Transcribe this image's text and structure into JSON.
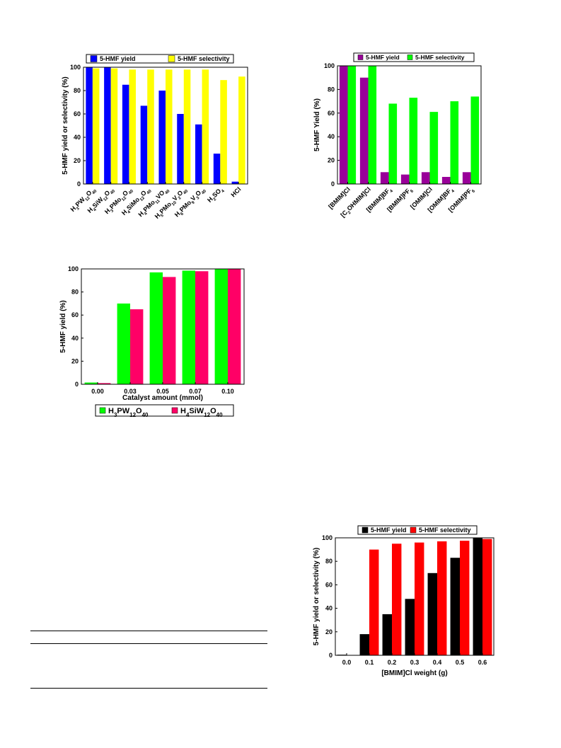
{
  "chart_data": [
    {
      "type": "bar",
      "categories": [
        "H3PW12O40",
        "H4SiW12O40",
        "H3PMo12O40",
        "H4SiMo12O40",
        "H4PMo11VO40",
        "H5PMo10V2O40",
        "H6PMo9V3O40",
        "H2SO4",
        "HCl"
      ],
      "tick_labels": [
        [
          [
            "H",
            "n"
          ],
          [
            "3",
            "sub"
          ],
          [
            "PW",
            "n"
          ],
          [
            "12",
            "sub"
          ],
          [
            "O",
            "n"
          ],
          [
            "40",
            "sub"
          ]
        ],
        [
          [
            "H",
            "n"
          ],
          [
            "4",
            "sub"
          ],
          [
            "SiW",
            "n"
          ],
          [
            "12",
            "sub"
          ],
          [
            "O",
            "n"
          ],
          [
            "40",
            "sub"
          ]
        ],
        [
          [
            "H",
            "n"
          ],
          [
            "3",
            "sub"
          ],
          [
            "PMo",
            "n"
          ],
          [
            "12",
            "sub"
          ],
          [
            "O",
            "n"
          ],
          [
            "40",
            "sub"
          ]
        ],
        [
          [
            "H",
            "n"
          ],
          [
            "4",
            "sub"
          ],
          [
            "SiMo",
            "n"
          ],
          [
            "12",
            "sub"
          ],
          [
            "O",
            "n"
          ],
          [
            "40",
            "sub"
          ]
        ],
        [
          [
            "H",
            "n"
          ],
          [
            "4",
            "sub"
          ],
          [
            "PMo",
            "n"
          ],
          [
            "11",
            "sub"
          ],
          [
            "VO",
            "n"
          ],
          [
            "40",
            "sub"
          ]
        ],
        [
          [
            "H",
            "n"
          ],
          [
            "5",
            "sub"
          ],
          [
            "PMo",
            "n"
          ],
          [
            "10",
            "sub"
          ],
          [
            "V",
            "n"
          ],
          [
            "2",
            "sub"
          ],
          [
            "O",
            "n"
          ],
          [
            "40",
            "sub"
          ]
        ],
        [
          [
            "H",
            "n"
          ],
          [
            "6",
            "sub"
          ],
          [
            "PMo",
            "n"
          ],
          [
            "9",
            "sub"
          ],
          [
            "V",
            "n"
          ],
          [
            "3",
            "sub"
          ],
          [
            "O",
            "n"
          ],
          [
            "40",
            "sub"
          ]
        ],
        [
          [
            "H",
            "n"
          ],
          [
            "2",
            "sub"
          ],
          [
            "SO",
            "n"
          ],
          [
            "4",
            "sub"
          ]
        ],
        [
          [
            "HCl",
            "n"
          ]
        ]
      ],
      "series": [
        {
          "name": "5-HMF yield",
          "color": "#0000ff",
          "values": [
            100,
            100,
            85,
            67,
            80,
            60,
            51,
            26,
            2
          ]
        },
        {
          "name": "5-HMF selectivity",
          "color": "#ffff00",
          "values": [
            99,
            99,
            98,
            98,
            98,
            98,
            98,
            89,
            92
          ]
        }
      ],
      "xlabel": "",
      "ylabel": "5-HMF yield or selectivity (%)",
      "ylim": [
        0,
        100
      ],
      "yticks": [
        0,
        20,
        40,
        60,
        80,
        100
      ],
      "legend": "top"
    },
    {
      "type": "bar",
      "categories": [
        "[BMIM]Cl",
        "[C2OHMIM]Cl",
        "[BMIM]BF4",
        "[BMIM]PF6",
        "[OMIM]Cl",
        "[OMIM]BF4",
        "[OMIM]PF6"
      ],
      "tick_labels": [
        [
          [
            "[BMIM]Cl",
            "n"
          ]
        ],
        [
          [
            "[C",
            "n"
          ],
          [
            "2",
            "sub"
          ],
          [
            "OHMIM]Cl",
            "n"
          ]
        ],
        [
          [
            "[BMIM]BF",
            "n"
          ],
          [
            "4",
            "sub"
          ]
        ],
        [
          [
            "[BMIM]PF",
            "n"
          ],
          [
            "6",
            "sub"
          ]
        ],
        [
          [
            "[OMIM]Cl",
            "n"
          ]
        ],
        [
          [
            "[OMIM]BF",
            "n"
          ],
          [
            "4",
            "sub"
          ]
        ],
        [
          [
            "[OMIM]PF",
            "n"
          ],
          [
            "6",
            "sub"
          ]
        ]
      ],
      "series": [
        {
          "name": "5-HMF yield",
          "color": "#990099",
          "values": [
            100,
            90,
            10,
            8,
            10,
            6,
            10
          ]
        },
        {
          "name": "5-HMF selectivity",
          "color": "#00ff00",
          "values": [
            100,
            100,
            68,
            73,
            61,
            70,
            74
          ]
        }
      ],
      "xlabel": "",
      "ylabel": "5-HMF Yield (%)",
      "ylim": [
        0,
        100
      ],
      "yticks": [
        0,
        20,
        40,
        60,
        80,
        100
      ],
      "legend": "top"
    },
    {
      "type": "bar",
      "categories": [
        "0.00",
        "0.03",
        "0.05",
        "0.07",
        "0.10"
      ],
      "tick_labels": [
        [
          [
            "0.00",
            "n"
          ]
        ],
        [
          [
            "0.03",
            "n"
          ]
        ],
        [
          [
            "0.05",
            "n"
          ]
        ],
        [
          [
            "0.07",
            "n"
          ]
        ],
        [
          [
            "0.10",
            "n"
          ]
        ]
      ],
      "series": [
        {
          "name": "H3PW12O40",
          "label_parts": [
            [
              "H",
              "n"
            ],
            [
              "3",
              "sub"
            ],
            [
              "PW",
              "n"
            ],
            [
              "12",
              "sub"
            ],
            [
              "O",
              "n"
            ],
            [
              "40",
              "sub"
            ]
          ],
          "color": "#00ff00",
          "values": [
            1.5,
            70,
            97,
            98.5,
            100
          ]
        },
        {
          "name": "H4SiW12O40",
          "label_parts": [
            [
              "H",
              "n"
            ],
            [
              "4",
              "sub"
            ],
            [
              "SiW",
              "n"
            ],
            [
              "12",
              "sub"
            ],
            [
              "O",
              "n"
            ],
            [
              "40",
              "sub"
            ]
          ],
          "color": "#ff0066",
          "values": [
            1,
            65,
            93,
            98,
            100
          ]
        }
      ],
      "xlabel": "Catalyst amount (mmol)",
      "ylabel": "5-HMF yield (%)",
      "ylim": [
        0,
        100
      ],
      "yticks": [
        0,
        20,
        40,
        60,
        80,
        100
      ],
      "legend": "bottom"
    },
    {
      "type": "bar",
      "categories": [
        "0.0",
        "0.1",
        "0.2",
        "0.3",
        "0.4",
        "0.5",
        "0.6"
      ],
      "tick_labels": [
        [
          [
            "0.0",
            "n"
          ]
        ],
        [
          [
            "0.1",
            "n"
          ]
        ],
        [
          [
            "0.2",
            "n"
          ]
        ],
        [
          [
            "0.3",
            "n"
          ]
        ],
        [
          [
            "0.4",
            "n"
          ]
        ],
        [
          [
            "0.5",
            "n"
          ]
        ],
        [
          [
            "0.6",
            "n"
          ]
        ]
      ],
      "series": [
        {
          "name": "5-HMF yield",
          "color": "#000000",
          "values": [
            0.5,
            18,
            35,
            48,
            70,
            83,
            100
          ]
        },
        {
          "name": "5-HMF selectivity",
          "color": "#ff0000",
          "values": [
            0,
            90,
            95,
            96,
            97,
            97.5,
            99
          ]
        }
      ],
      "xlabel": "[BMIM]Cl weight (g)",
      "ylabel": "5-HMF yield or selectivity (%)",
      "ylim": [
        0,
        100
      ],
      "yticks": [
        0,
        20,
        40,
        60,
        80,
        100
      ],
      "legend": "top"
    }
  ]
}
